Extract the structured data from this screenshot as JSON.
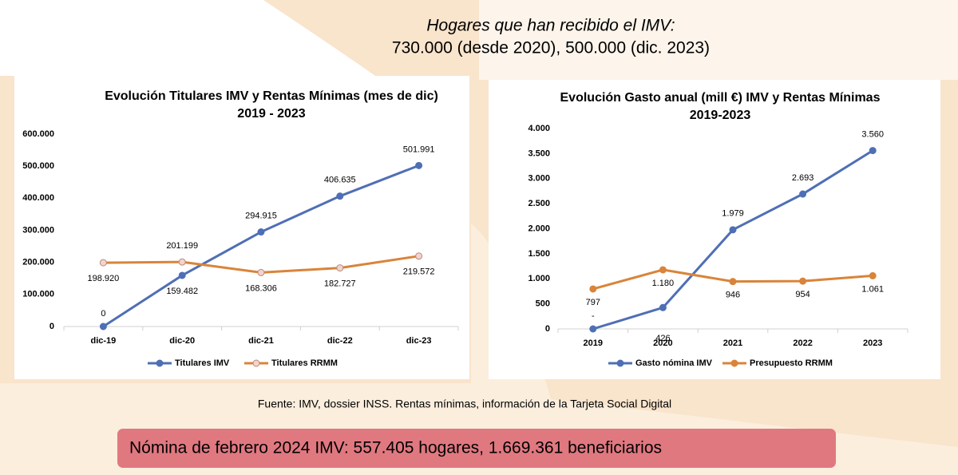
{
  "header": {
    "line1": "Hogares que han recibido el IMV:",
    "line2": "730.000 (desde 2020),  500.000 (dic. 2023)"
  },
  "source": "Fuente: IMV, dossier INSS. Rentas mínimas, información de la Tarjeta Social Digital",
  "banner": "Nómina de febrero 2024 IMV: 557.405 hogares, 1.669.361 beneficiarios",
  "chart_data": [
    {
      "type": "line",
      "title": [
        "Evolución Titulares IMV y Rentas Mínimas (mes de dic)",
        "2019 - 2023"
      ],
      "categories": [
        "dic-19",
        "dic-20",
        "dic-21",
        "dic-22",
        "dic-23"
      ],
      "series": [
        {
          "name": "Titulares IMV",
          "color": "#4f6fb5",
          "values": [
            0,
            159482,
            294915,
            406635,
            501991
          ],
          "value_labels": [
            "0",
            "159.482",
            "294.915",
            "406.635",
            "501.991"
          ]
        },
        {
          "name": "Titulares RRMM",
          "color": "#d9843a",
          "values": [
            198920,
            201199,
            168306,
            182727,
            219572
          ],
          "value_labels": [
            "198.920",
            "201.199",
            "168.306",
            "182.727",
            "219.572"
          ]
        }
      ],
      "ylim": [
        0,
        600000
      ],
      "yticks": [
        0,
        {
          "value": 100000,
          "label": "100.000"
        },
        {
          "value": 200000,
          "label": "200.000"
        },
        {
          "value": 300000,
          "label": "300.000"
        },
        {
          "value": 400000,
          "label": "400.000"
        },
        {
          "value": 500000,
          "label": "500.000"
        },
        {
          "value": 600000,
          "label": "600.000"
        }
      ],
      "grid": false,
      "legend": "bottom"
    },
    {
      "type": "line",
      "title": [
        "Evolución Gasto anual  (mill €) IMV y Rentas Mínimas",
        "2019-2023"
      ],
      "categories": [
        "2019",
        "2020",
        "2021",
        "2022",
        "2023"
      ],
      "series": [
        {
          "name": "Gasto nómina IMV",
          "color": "#4f6fb5",
          "values": [
            0,
            426,
            1979,
            2693,
            3560
          ],
          "value_labels": [
            "-",
            "426",
            "1.979",
            "2.693",
            "3.560"
          ]
        },
        {
          "name": "Presupuesto RRMM",
          "color": "#d9843a",
          "values": [
            797,
            1180,
            946,
            954,
            1061
          ],
          "value_labels": [
            "797",
            "1.180",
            "946",
            "954",
            "1.061"
          ]
        }
      ],
      "ylim": [
        0,
        4000
      ],
      "yticks": [
        0,
        500,
        {
          "value": 1000,
          "label": "1.000"
        },
        {
          "value": 1500,
          "label": "1.500"
        },
        {
          "value": 2000,
          "label": "2.000"
        },
        {
          "value": 2500,
          "label": "2.500"
        },
        {
          "value": 3000,
          "label": "3.000"
        },
        {
          "value": 3500,
          "label": "3.500"
        },
        {
          "value": 4000,
          "label": "4.000"
        }
      ],
      "grid": false,
      "legend": "bottom"
    }
  ]
}
